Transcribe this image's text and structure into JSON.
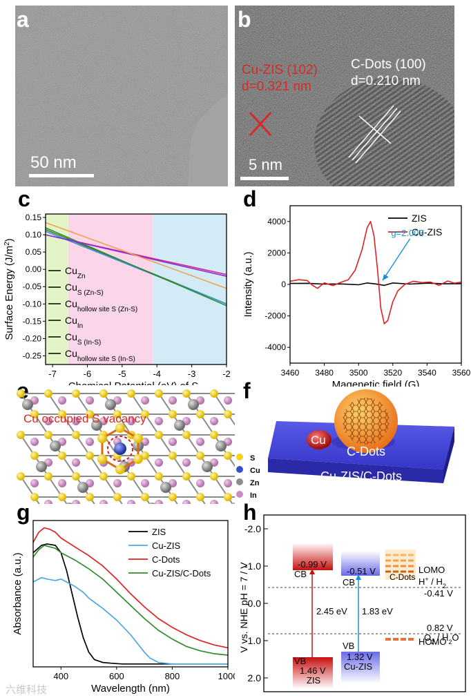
{
  "panel_labels": {
    "a": "a",
    "b": "b",
    "c": "c",
    "d": "d",
    "e": "e",
    "f": "f",
    "g": "g",
    "h": "h"
  },
  "panel_a": {
    "scale_bar": "50 nm"
  },
  "panel_b": {
    "scale_bar": "5 nm",
    "left_label_line1": "Cu-ZIS (102)",
    "left_label_line2": "d=0.321 nm",
    "right_label_line1": "C-Dots (100)",
    "right_label_line2": "d=0.210 nm",
    "colors": {
      "left": "#d42a2a",
      "right": "#ffffff"
    }
  },
  "chart_data": [
    {
      "panel": "c",
      "type": "line",
      "xlabel": "Chemical Potential (eV) of S",
      "ylabel": "Surface Energy (J/m2)",
      "ylabel_main": "Surface Energy (J/m",
      "ylabel_sup": "2",
      "ylabel_close": ")",
      "xlim": [
        -7.2,
        -2
      ],
      "ylim": [
        -0.275,
        0.16
      ],
      "xticks": [
        -7,
        -6,
        -5,
        -4,
        -3,
        -2
      ],
      "yticks": [
        -0.25,
        -0.2,
        -0.15,
        -0.1,
        -0.05,
        0.0,
        0.05,
        0.1,
        0.15
      ],
      "ytick_labels": [
        "-0.25",
        "-0.20",
        "-0.15",
        "-0.10",
        "-0.05",
        "0.00",
        "0.05",
        "0.10",
        "0.15"
      ],
      "regions": [
        {
          "from": -7.2,
          "to": -6.55,
          "color": "#e3f5c6"
        },
        {
          "from": -6.55,
          "to": -4.12,
          "color": "#fbd5ea"
        },
        {
          "from": -4.12,
          "to": -2,
          "color": "#d3ebf7"
        }
      ],
      "series": [
        {
          "name": "Cu_Zn",
          "label": "Cu",
          "sub": "Zn",
          "color": "#3f7a2a",
          "x": [
            -7.2,
            -2
          ],
          "y": [
            0.115,
            -0.1
          ]
        },
        {
          "name": "Cu_S (Zn-S)",
          "label": "Cu",
          "sub": "S (Zn-S)",
          "color": "#d6287e",
          "x": [
            -7.2,
            -2
          ],
          "y": [
            0.1,
            -0.015
          ]
        },
        {
          "name": "Cu_hollow site S (Zn-S)",
          "label": "Cu",
          "sub": "hollow site S (Zn-S)",
          "color": "#3b8ee0",
          "x": [
            -7.2,
            -2
          ],
          "y": [
            0.11,
            -0.1
          ]
        },
        {
          "name": "Cu_In",
          "label": "Cu",
          "sub": "In",
          "color": "#2e8b2e",
          "x": [
            -7.2,
            -2
          ],
          "y": [
            0.12,
            -0.105
          ]
        },
        {
          "name": "Cu_S (In-S)",
          "label": "Cu",
          "sub": "S (In-S)",
          "color": "#8a2be2",
          "x": [
            -7.2,
            -2
          ],
          "y": [
            0.1,
            -0.02
          ]
        },
        {
          "name": "Cu_hollow site S (In-S)",
          "label": "Cu",
          "sub": "hollow site S (In-S)",
          "color": "#f0a050",
          "x": [
            -7.2,
            -2
          ],
          "y": [
            0.135,
            -0.055
          ]
        }
      ],
      "legend_line_color": "#000000"
    },
    {
      "panel": "d",
      "type": "line",
      "xlabel": "Magenetic field (G)",
      "ylabel": "Intensity (a.u.)",
      "xlim": [
        3460,
        3560
      ],
      "ylim": [
        -5000,
        5000
      ],
      "xticks": [
        3460,
        3480,
        3500,
        3520,
        3540,
        3560
      ],
      "yticks": [
        -4000,
        -2000,
        0,
        2000,
        4000
      ],
      "series": [
        {
          "name": "ZIS",
          "color": "#000000",
          "x": [
            3460,
            3470,
            3480,
            3490,
            3500,
            3505,
            3510,
            3515,
            3520,
            3530,
            3540,
            3550,
            3560
          ],
          "y": [
            60,
            70,
            20,
            30,
            -20,
            90,
            30,
            -60,
            90,
            20,
            80,
            40,
            50
          ]
        },
        {
          "name": "Cu-ZIS",
          "color": "#e02020",
          "x": [
            3460,
            3465,
            3470,
            3473,
            3476,
            3480,
            3485,
            3490,
            3494,
            3498,
            3502,
            3505,
            3507,
            3509,
            3511,
            3513,
            3515,
            3517,
            3520,
            3523,
            3527,
            3532,
            3537,
            3542,
            3547,
            3552,
            3556,
            3560
          ],
          "y": [
            200,
            300,
            250,
            -50,
            -250,
            100,
            -80,
            150,
            300,
            900,
            2200,
            3600,
            4000,
            3100,
            1000,
            -1500,
            -2500,
            -2300,
            -1100,
            -400,
            0,
            200,
            120,
            150,
            -60,
            220,
            80,
            150
          ]
        }
      ],
      "annotation": "g=2.003",
      "annotation_color": "#1a8fd6"
    },
    {
      "panel": "g",
      "type": "line",
      "xlabel": "Wavelength (nm)",
      "ylabel": "Absorbance (a.u.)",
      "xlim": [
        300,
        1000
      ],
      "ylim": [
        0,
        1
      ],
      "xticks": [
        400,
        600,
        800,
        1000
      ],
      "series": [
        {
          "name": "ZIS",
          "color": "#000000",
          "x": [
            300,
            330,
            350,
            380,
            400,
            420,
            440,
            460,
            480,
            500,
            520,
            550,
            580,
            620,
            700,
            800,
            1000
          ],
          "y": [
            0.78,
            0.83,
            0.84,
            0.83,
            0.78,
            0.66,
            0.5,
            0.34,
            0.2,
            0.1,
            0.05,
            0.03,
            0.025,
            0.02,
            0.02,
            0.02,
            0.02
          ]
        },
        {
          "name": "Cu-ZIS",
          "color": "#4aa8e0",
          "x": [
            300,
            330,
            350,
            380,
            400,
            420,
            450,
            480,
            500,
            550,
            600,
            650,
            700,
            720,
            750,
            800,
            1000
          ],
          "y": [
            0.58,
            0.61,
            0.6,
            0.59,
            0.6,
            0.58,
            0.55,
            0.51,
            0.47,
            0.4,
            0.32,
            0.22,
            0.1,
            0.06,
            0.03,
            0.02,
            0.02
          ]
        },
        {
          "name": "C-Dots",
          "color": "#e02020",
          "x": [
            300,
            320,
            340,
            360,
            380,
            400,
            450,
            500,
            550,
            600,
            650,
            700,
            750,
            800,
            850,
            900,
            950,
            1000
          ],
          "y": [
            0.85,
            0.92,
            0.95,
            0.94,
            0.92,
            0.88,
            0.82,
            0.76,
            0.69,
            0.6,
            0.5,
            0.41,
            0.33,
            0.27,
            0.22,
            0.18,
            0.15,
            0.13
          ]
        },
        {
          "name": "Cu-ZIS/C-Dots",
          "color": "#2e8b2e",
          "x": [
            300,
            320,
            340,
            360,
            380,
            400,
            450,
            500,
            550,
            600,
            650,
            700,
            750,
            800,
            850,
            900,
            950,
            1000
          ],
          "y": [
            0.75,
            0.8,
            0.83,
            0.82,
            0.81,
            0.78,
            0.73,
            0.67,
            0.6,
            0.51,
            0.42,
            0.33,
            0.25,
            0.19,
            0.14,
            0.11,
            0.09,
            0.08
          ]
        }
      ]
    }
  ],
  "panel_e": {
    "title": "Cu occupied S vacancy",
    "title_color": "#d42a2a",
    "legend": [
      {
        "label": "S",
        "color": "#f2d21a"
      },
      {
        "label": "Cu",
        "color": "#3a4fc8"
      },
      {
        "label": "Zn",
        "color": "#8c8c8c"
      },
      {
        "label": "In",
        "color": "#c98bc0"
      }
    ]
  },
  "panel_f": {
    "cu_label": "Cu",
    "cdots_label": "C-Dots",
    "substrate_label": "Cu-ZIS/C-Dots"
  },
  "panel_h": {
    "ylabel": "V vs. NHE pH = 7 / V",
    "yticks": [
      "-2.0",
      "-1.0",
      "0.0",
      "1.0",
      "2.0"
    ],
    "zis": {
      "cb": "-0.99 V",
      "vb": "1.46 V",
      "name": "ZIS",
      "cb_label": "CB",
      "vb_label": "VB",
      "gap": "2.45 eV"
    },
    "cuzis": {
      "cb": "-0.51 V",
      "vb": "1.32 V",
      "name": "Cu-ZIS",
      "cb_label": "CB",
      "vb_label": "VB",
      "gap": "1.83 eV"
    },
    "cdots": {
      "name": "C-Dots",
      "lomo": "LOMO",
      "homo": "HOMO"
    },
    "h_couple": "H+ / H2",
    "h_couple_pre": "H",
    "h_couple_sup": "+",
    "h_couple_mid": " / H",
    "h_couple_sub": "2",
    "h_potential": "-0.41 V",
    "o_couple": "O2 / H2O",
    "o_pre": "O",
    "o_sub1": "2",
    "o_mid": " / H",
    "o_sub2": "2",
    "o_post": "O",
    "o_potential": "0.82 V"
  },
  "watermark": "六维科技"
}
